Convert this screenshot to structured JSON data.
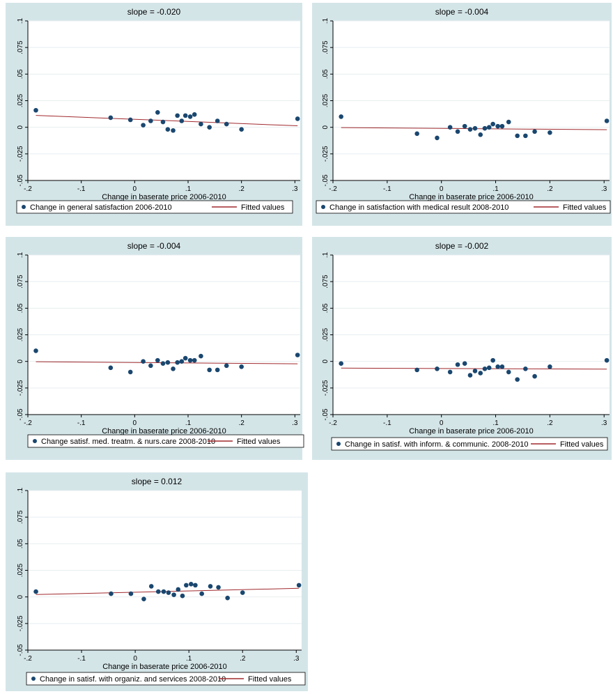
{
  "chart_data": [
    {
      "type": "scatter",
      "title": "slope = -0.020",
      "xlabel": "Change in baserate price 2006-2010",
      "ylabel": "",
      "xlim": [
        -0.2,
        0.31
      ],
      "ylim": [
        -0.05,
        0.1
      ],
      "xticks": [
        -0.2,
        -0.1,
        0,
        0.1,
        0.2,
        0.3
      ],
      "xtick_labels": [
        "-.2",
        "-.1",
        "0",
        ".1",
        ".2",
        ".3"
      ],
      "yticks": [
        -0.05,
        -0.025,
        0,
        0.025,
        0.05,
        0.075,
        0.1
      ],
      "ytick_labels": [
        "-.05",
        "-.025",
        "0",
        ".025",
        ".05",
        ".075",
        ".1"
      ],
      "legend_position": "bottom",
      "grid": true,
      "series": [
        {
          "name": "Change in general satisfaction 2006-2010",
          "kind": "scatter",
          "color": "#1a476f",
          "x": [
            -0.185,
            -0.045,
            -0.008,
            0.016,
            0.03,
            0.043,
            0.053,
            0.062,
            0.072,
            0.08,
            0.088,
            0.095,
            0.104,
            0.112,
            0.124,
            0.14,
            0.155,
            0.172,
            0.2,
            0.305
          ],
          "y": [
            0.016,
            0.009,
            0.007,
            0.002,
            0.006,
            0.014,
            0.005,
            -0.002,
            -0.003,
            0.011,
            0.006,
            0.011,
            0.01,
            0.012,
            0.003,
            0.0,
            0.006,
            0.003,
            -0.002,
            0.008
          ]
        },
        {
          "name": "Fitted values",
          "kind": "line",
          "color": "#a0292d",
          "x": [
            -0.185,
            0.305
          ],
          "y": [
            0.0112,
            0.0014
          ]
        }
      ]
    },
    {
      "type": "scatter",
      "title": "slope = -0.004",
      "xlabel": "Change in baserate price 2006-2010",
      "ylabel": "",
      "xlim": [
        -0.2,
        0.31
      ],
      "ylim": [
        -0.05,
        0.1
      ],
      "xticks": [
        -0.2,
        -0.1,
        0,
        0.1,
        0.2,
        0.3
      ],
      "xtick_labels": [
        "-.2",
        "-.1",
        "0",
        ".1",
        ".2",
        ".3"
      ],
      "yticks": [
        -0.05,
        -0.025,
        0,
        0.025,
        0.05,
        0.075,
        0.1
      ],
      "ytick_labels": [
        "-.05",
        "-.025",
        "0",
        ".025",
        ".05",
        ".075",
        ".1"
      ],
      "legend_position": "bottom",
      "grid": true,
      "series": [
        {
          "name": "Change in satisfaction with medical result 2008-2010",
          "kind": "scatter",
          "color": "#1a476f",
          "x": [
            -0.185,
            -0.045,
            -0.008,
            0.016,
            0.03,
            0.043,
            0.053,
            0.062,
            0.072,
            0.08,
            0.088,
            0.095,
            0.104,
            0.112,
            0.124,
            0.14,
            0.155,
            0.172,
            0.2,
            0.305
          ],
          "y": [
            0.01,
            -0.006,
            -0.01,
            0.0,
            -0.004,
            0.001,
            -0.002,
            -0.001,
            -0.007,
            -0.001,
            0.0,
            0.003,
            0.001,
            0.001,
            0.005,
            -0.008,
            -0.008,
            -0.004,
            -0.005,
            0.006
          ]
        },
        {
          "name": "Fitted values",
          "kind": "line",
          "color": "#a0292d",
          "x": [
            -0.185,
            0.305
          ],
          "y": [
            -0.0003,
            -0.0023
          ]
        }
      ]
    },
    {
      "type": "scatter",
      "title": "slope = -0.004",
      "xlabel": "Change in baserate price 2006-2010",
      "ylabel": "",
      "xlim": [
        -0.2,
        0.31
      ],
      "ylim": [
        -0.05,
        0.1
      ],
      "xticks": [
        -0.2,
        -0.1,
        0,
        0.1,
        0.2,
        0.3
      ],
      "xtick_labels": [
        "-.2",
        "-.1",
        "0",
        ".1",
        ".2",
        ".3"
      ],
      "yticks": [
        -0.05,
        -0.025,
        0,
        0.025,
        0.05,
        0.075,
        0.1
      ],
      "ytick_labels": [
        "-.05",
        "-.025",
        "0",
        ".025",
        ".05",
        ".075",
        ".1"
      ],
      "legend_position": "bottom",
      "grid": true,
      "series": [
        {
          "name": "Change satisf. med. treatm. & nurs.care 2008-2010",
          "kind": "scatter",
          "color": "#1a476f",
          "x": [
            -0.185,
            -0.045,
            -0.008,
            0.016,
            0.03,
            0.043,
            0.053,
            0.062,
            0.072,
            0.08,
            0.088,
            0.095,
            0.104,
            0.112,
            0.124,
            0.14,
            0.155,
            0.172,
            0.2,
            0.305
          ],
          "y": [
            0.01,
            -0.006,
            -0.01,
            0.0,
            -0.004,
            0.001,
            -0.002,
            -0.001,
            -0.007,
            -0.001,
            0.0,
            0.003,
            0.001,
            0.001,
            0.005,
            -0.008,
            -0.008,
            -0.004,
            -0.005,
            0.006
          ]
        },
        {
          "name": "Fitted values",
          "kind": "line",
          "color": "#a0292d",
          "x": [
            -0.185,
            0.305
          ],
          "y": [
            -0.0003,
            -0.0023
          ]
        }
      ]
    },
    {
      "type": "scatter",
      "title": "slope = -0.002",
      "xlabel": "Change in baserate price 2006-2010",
      "ylabel": "",
      "xlim": [
        -0.2,
        0.31
      ],
      "ylim": [
        -0.05,
        0.1
      ],
      "xticks": [
        -0.2,
        -0.1,
        0,
        0.1,
        0.2,
        0.3
      ],
      "xtick_labels": [
        "-.2",
        "-.1",
        "0",
        ".1",
        ".2",
        ".3"
      ],
      "yticks": [
        -0.05,
        -0.025,
        0,
        0.025,
        0.05,
        0.075,
        0.1
      ],
      "ytick_labels": [
        "-.05",
        "-.025",
        "0",
        ".025",
        ".05",
        ".075",
        ".1"
      ],
      "legend_position": "bottom",
      "grid": true,
      "series": [
        {
          "name": "Change in satisf. with inform. & communic. 2008-2010",
          "kind": "scatter",
          "color": "#1a476f",
          "x": [
            -0.185,
            -0.045,
            -0.008,
            0.016,
            0.03,
            0.043,
            0.053,
            0.062,
            0.072,
            0.08,
            0.088,
            0.095,
            0.104,
            0.112,
            0.124,
            0.14,
            0.155,
            0.172,
            0.2,
            0.305
          ],
          "y": [
            -0.002,
            -0.008,
            -0.007,
            -0.01,
            -0.003,
            -0.002,
            -0.013,
            -0.009,
            -0.011,
            -0.007,
            -0.006,
            0.001,
            -0.005,
            -0.005,
            -0.01,
            -0.017,
            -0.007,
            -0.014,
            -0.005,
            0.001
          ]
        },
        {
          "name": "Fitted values",
          "kind": "line",
          "color": "#a0292d",
          "x": [
            -0.185,
            0.305
          ],
          "y": [
            -0.0063,
            -0.0073
          ]
        }
      ]
    },
    {
      "type": "scatter",
      "title": "slope = 0.012",
      "xlabel": "Change in baserate price 2006-2010",
      "ylabel": "",
      "xlim": [
        -0.2,
        0.31
      ],
      "ylim": [
        -0.05,
        0.1
      ],
      "xticks": [
        -0.2,
        -0.1,
        0,
        0.1,
        0.2,
        0.3
      ],
      "xtick_labels": [
        "-.2",
        "-.1",
        "0",
        ".1",
        ".2",
        ".3"
      ],
      "yticks": [
        -0.05,
        -0.025,
        0,
        0.025,
        0.05,
        0.075,
        0.1
      ],
      "ytick_labels": [
        "-.05",
        "-.025",
        "0",
        ".025",
        ".05",
        ".075",
        ".1"
      ],
      "legend_position": "bottom",
      "grid": true,
      "series": [
        {
          "name": "Change in satisf. with organiz. and services 2008-2010",
          "kind": "scatter",
          "color": "#1a476f",
          "x": [
            -0.185,
            -0.045,
            -0.008,
            0.016,
            0.03,
            0.043,
            0.053,
            0.062,
            0.072,
            0.08,
            0.088,
            0.095,
            0.104,
            0.112,
            0.124,
            0.14,
            0.155,
            0.172,
            0.2,
            0.305
          ],
          "y": [
            0.005,
            0.003,
            0.003,
            -0.002,
            0.01,
            0.005,
            0.005,
            0.004,
            0.002,
            0.007,
            0.001,
            0.011,
            0.012,
            0.011,
            0.003,
            0.01,
            0.009,
            -0.001,
            0.004,
            0.011
          ]
        },
        {
          "name": "Fitted values",
          "kind": "line",
          "color": "#a0292d",
          "x": [
            -0.185,
            0.305
          ],
          "y": [
            0.0022,
            0.0081
          ]
        }
      ]
    }
  ]
}
